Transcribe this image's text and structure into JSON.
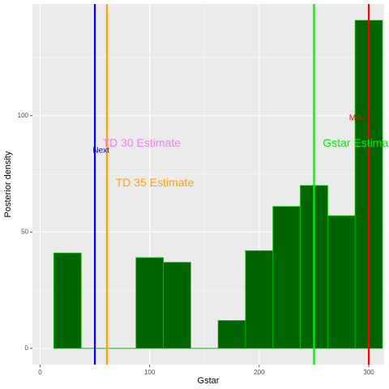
{
  "chart_data": {
    "type": "bar",
    "xlabel": "Gstar",
    "ylabel": "Posterior density",
    "xlim": [
      -7,
      314
    ],
    "ylim": [
      -7,
      148
    ],
    "x_ticks": [
      0,
      100,
      200,
      300
    ],
    "y_ticks": [
      0,
      50,
      100
    ],
    "grid": true,
    "bins": [
      {
        "x0": 12.5,
        "x1": 37.5,
        "value": 41
      },
      {
        "x0": 37.5,
        "x1": 87.5,
        "value": 0
      },
      {
        "x0": 87.5,
        "x1": 112.5,
        "value": 39
      },
      {
        "x0": 112.5,
        "x1": 137.5,
        "value": 37
      },
      {
        "x0": 137.5,
        "x1": 162.5,
        "value": 0
      },
      {
        "x0": 162.5,
        "x1": 187.5,
        "value": 12
      },
      {
        "x0": 187.5,
        "x1": 212.5,
        "value": 42
      },
      {
        "x0": 212.5,
        "x1": 237.5,
        "value": 61
      },
      {
        "x0": 237.5,
        "x1": 262.5,
        "value": 70
      },
      {
        "x0": 262.5,
        "x1": 287.5,
        "value": 57
      },
      {
        "x0": 287.5,
        "x1": 312.5,
        "value": 141
      }
    ],
    "bar_fill": "#006400",
    "bar_outline": "#00c000",
    "vlines": [
      {
        "x": 50,
        "color": "#0000ff",
        "label": "Next",
        "label_x": 48,
        "label_y": 85,
        "label_size": 10
      },
      {
        "x": 61,
        "color": "#ffa500",
        "label": "TD 35 Estimate",
        "label_x": 69,
        "label_y": 71,
        "label_size": 14
      },
      {
        "x": 250,
        "color": "#00ee00",
        "label": "Gstar Estimate",
        "label_x": 258,
        "label_y": 88,
        "label_size": 14
      },
      {
        "x": 300,
        "color": "#ff0000",
        "label": "Max",
        "label_x": 282,
        "label_y": 99,
        "label_size": 10
      }
    ],
    "text_annotations": [
      {
        "label": "TD 30 Estimate",
        "color": "#ee82ee",
        "x": 57,
        "y": 88,
        "size": 14
      }
    ]
  }
}
